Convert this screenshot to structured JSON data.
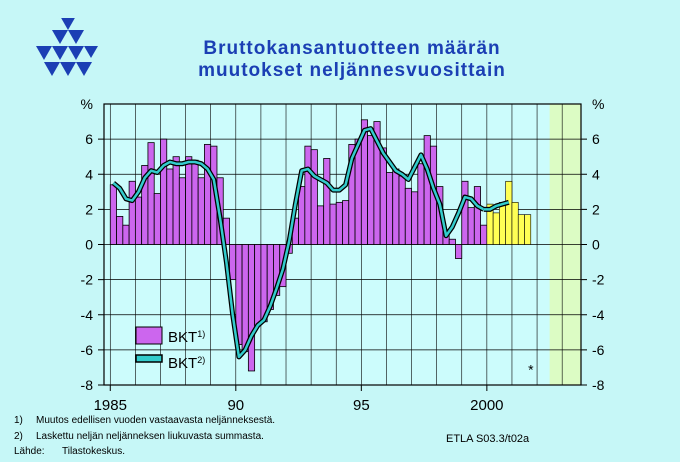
{
  "title_line1": "Bruttokansantuotteen  määrän",
  "title_line2": "muutokset  neljännesvuosittain",
  "footnotes": [
    {
      "num": "1)",
      "text": "Muutos edellisen vuoden vastaavasta neljänneksestä."
    },
    {
      "num": "2)",
      "text": "Laskettu neljän neljänneksen liukuvasta summasta."
    },
    {
      "num": "Lähde:",
      "text": "Tilastokeskus."
    }
  ],
  "credit": "ETLA S03.3/t02a",
  "chart_data": {
    "type": "bar",
    "ylabel": "%",
    "ylim": [
      -8,
      8
    ],
    "yticks": [
      -8,
      -6,
      -4,
      -2,
      0,
      2,
      4,
      6
    ],
    "xticks": [
      "1985",
      "90",
      "95",
      "2000"
    ],
    "xrange": [
      1984.75,
      2003.75
    ],
    "forecast_start": 2002.5,
    "asterisk": "*",
    "colors": {
      "actual": "#cc66ee",
      "forecast": "#ffff55",
      "line": "#33cccc",
      "forecast_bg": "#dcfcc4",
      "plot_bg": "#ccfcfc"
    },
    "legend": [
      {
        "label": "BKT",
        "sup": "1)",
        "kind": "bar"
      },
      {
        "label": "BKT",
        "sup": "2)",
        "kind": "line"
      }
    ],
    "quarterly": {
      "start": "1985Q1",
      "bkt": [
        3.4,
        1.6,
        1.1,
        3.6,
        2.7,
        4.5,
        5.8,
        2.9,
        6.0,
        4.3,
        5.0,
        3.8,
        5.0,
        4.8,
        3.8,
        5.7,
        5.6,
        3.8,
        1.5,
        -2.0,
        -5.7,
        -6.1,
        -7.2,
        -4.6,
        -4.4,
        -3.7,
        -2.9,
        -2.4,
        -0.5,
        1.5,
        3.3,
        5.6,
        5.4,
        2.2,
        4.9,
        2.3,
        2.4,
        2.5,
        5.7,
        6.0,
        7.1,
        6.2,
        7.0,
        5.5,
        4.1,
        4.3,
        3.9,
        3.2,
        3.0,
        4.6,
        6.2,
        5.6,
        3.3,
        0.7,
        0.3,
        -0.8,
        3.6,
        2.1,
        3.3,
        1.1
      ],
      "bkt_forecast": [
        2.3,
        1.8,
        2.4,
        3.6,
        2.4,
        1.7,
        1.7
      ],
      "bkt2": [
        3.5,
        3.2,
        2.6,
        2.5,
        3.0,
        3.8,
        4.2,
        4.1,
        4.5,
        4.7,
        4.6,
        4.6,
        4.7,
        4.7,
        4.6,
        4.3,
        3.7,
        1.5,
        -1.0,
        -4.0,
        -6.4,
        -6.0,
        -5.2,
        -4.6,
        -4.3,
        -3.5,
        -2.5,
        -1.4,
        0.2,
        2.3,
        4.2,
        4.3,
        3.9,
        3.7,
        3.5,
        3.1,
        3.1,
        3.4,
        4.9,
        5.7,
        6.5,
        6.6,
        5.9,
        5.2,
        4.7,
        4.2,
        4.0,
        3.7,
        4.4,
        5.1,
        4.3,
        3.2,
        2.3,
        0.5,
        1.0,
        1.8,
        2.7,
        2.6,
        2.2,
        2.0
      ],
      "bkt2_forecast": [
        2.0,
        2.2,
        2.3,
        2.4
      ]
    }
  }
}
